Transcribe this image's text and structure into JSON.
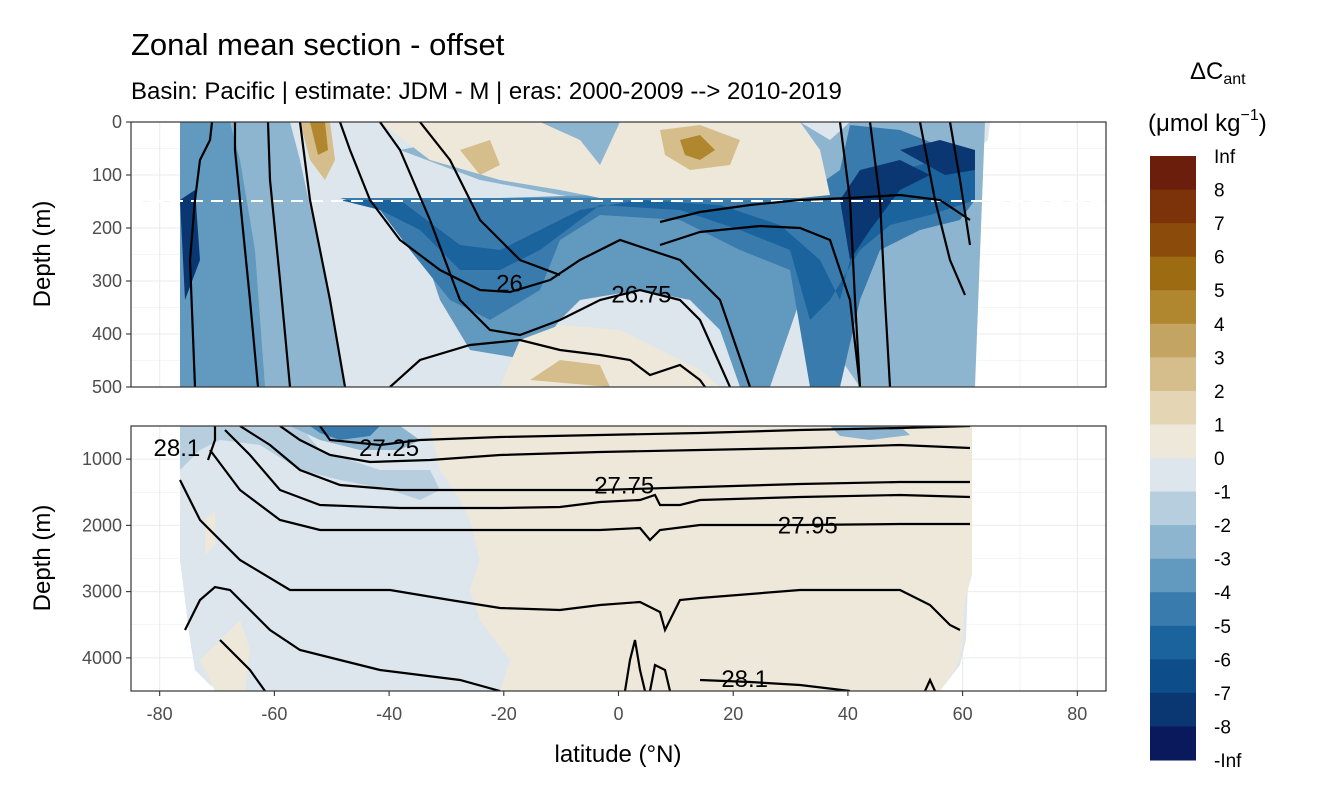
{
  "chart_data": {
    "type": "heatmap",
    "title": "Zonal mean section - offset",
    "subtitle": "Basin: Pacific | estimate: JDM - M | eras: 2000-2009 --> 2010-2019",
    "xlabel": "latitude (°N)",
    "ylabel": "Depth (m)",
    "xlim": [
      -85,
      85
    ],
    "x_ticks": [
      -80,
      -60,
      -40,
      -20,
      0,
      20,
      40,
      60,
      80
    ],
    "x_tick_labels": [
      "-80",
      "-60",
      "-40",
      "-20",
      "0",
      "20",
      "40",
      "60",
      "80"
    ],
    "panels": [
      {
        "name": "upper",
        "ylim": [
          0,
          500
        ],
        "y_ticks": [
          0,
          100,
          200,
          300,
          400,
          500
        ],
        "y_tick_labels": [
          "0",
          "100",
          "200",
          "300",
          "400",
          "500"
        ],
        "reference_depth": 150,
        "contour_labels": [
          {
            "text": "26",
            "x": -19,
            "y": 305
          },
          {
            "text": "26.75",
            "x": 4,
            "y": 325
          }
        ]
      },
      {
        "name": "lower",
        "ylim": [
          500,
          4500
        ],
        "y_ticks": [
          1000,
          2000,
          3000,
          4000
        ],
        "y_tick_labels": [
          "1000",
          "2000",
          "3000",
          "4000"
        ],
        "contour_labels": [
          {
            "text": "28.1",
            "x": -77,
            "y": 830
          },
          {
            "text": "27.25",
            "x": -40,
            "y": 830
          },
          {
            "text": "27.75",
            "x": 1,
            "y": 1400
          },
          {
            "text": "27.95",
            "x": 33,
            "y": 2000
          },
          {
            "text": "28.1",
            "x": 22,
            "y": 4320
          }
        ]
      }
    ],
    "legend": {
      "position": "right",
      "title_main": "ΔC",
      "title_sub": "ant",
      "title_unit": "(μmol kg",
      "title_unit_exp": "−1",
      "title_unit_end": ")",
      "breaks": [
        "Inf",
        "8",
        "7",
        "6",
        "5",
        "4",
        "3",
        "2",
        "1",
        "0",
        "-1",
        "-2",
        "-3",
        "-4",
        "-5",
        "-6",
        "-7",
        "-8",
        "-Inf"
      ],
      "colors": [
        "#6b1e0c",
        "#7d3309",
        "#8b4b0b",
        "#9d6b12",
        "#b0872f",
        "#c4a463",
        "#d5be8c",
        "#e4d5b4",
        "#eee8db",
        "#dde6ec",
        "#b7cedf",
        "#8eb5cf",
        "#6299bf",
        "#3a7bae",
        "#1b639d",
        "#0c4d8a",
        "#0a3672",
        "#09195c"
      ]
    }
  }
}
